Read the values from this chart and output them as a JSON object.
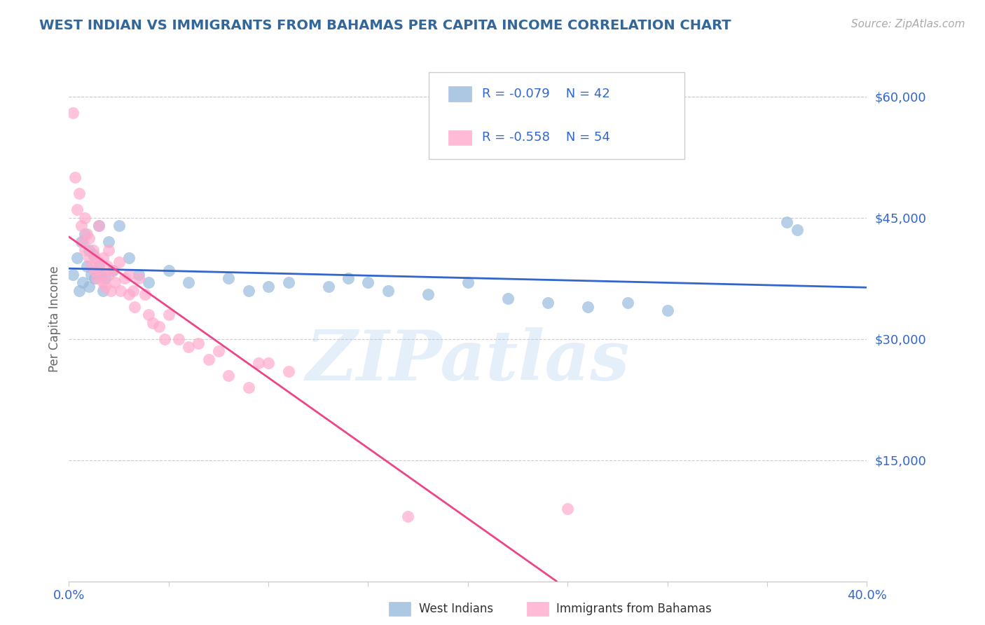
{
  "title": "WEST INDIAN VS IMMIGRANTS FROM BAHAMAS PER CAPITA INCOME CORRELATION CHART",
  "source": "Source: ZipAtlas.com",
  "ylabel": "Per Capita Income",
  "yticks": [
    0,
    15000,
    30000,
    45000,
    60000
  ],
  "ytick_labels": [
    "",
    "$15,000",
    "$30,000",
    "$45,000",
    "$60,000"
  ],
  "xlim": [
    0.0,
    0.4
  ],
  "ylim": [
    0,
    65000
  ],
  "legend_r1": "R = -0.079",
  "legend_n1": "N = 42",
  "legend_r2": "R = -0.558",
  "legend_n2": "N = 54",
  "blue_color": "#99bbdd",
  "pink_color": "#ffaacc",
  "blue_line_color": "#3366cc",
  "pink_line_color": "#ee4488",
  "title_color": "#336699",
  "source_color": "#aaaaaa",
  "grid_color": "#cccccc",
  "watermark": "ZIPatlas",
  "blue_scatter_x": [
    0.002,
    0.004,
    0.005,
    0.006,
    0.007,
    0.008,
    0.009,
    0.01,
    0.01,
    0.011,
    0.012,
    0.013,
    0.015,
    0.015,
    0.016,
    0.017,
    0.018,
    0.02,
    0.022,
    0.025,
    0.03,
    0.035,
    0.04,
    0.05,
    0.06,
    0.08,
    0.09,
    0.1,
    0.11,
    0.13,
    0.14,
    0.15,
    0.16,
    0.18,
    0.2,
    0.22,
    0.24,
    0.26,
    0.28,
    0.3,
    0.36,
    0.365
  ],
  "blue_scatter_y": [
    38000,
    40000,
    36000,
    42000,
    37000,
    43000,
    39000,
    41000,
    36500,
    38000,
    40500,
    37500,
    44000,
    39000,
    38000,
    36000,
    37500,
    42000,
    38500,
    44000,
    40000,
    38000,
    37000,
    38500,
    37000,
    37500,
    36000,
    36500,
    37000,
    36500,
    37500,
    37000,
    36000,
    35500,
    37000,
    35000,
    34500,
    34000,
    34500,
    33500,
    44500,
    43500
  ],
  "pink_scatter_x": [
    0.002,
    0.003,
    0.004,
    0.005,
    0.006,
    0.007,
    0.008,
    0.008,
    0.009,
    0.01,
    0.01,
    0.011,
    0.012,
    0.013,
    0.013,
    0.014,
    0.015,
    0.015,
    0.016,
    0.017,
    0.017,
    0.018,
    0.019,
    0.02,
    0.02,
    0.021,
    0.022,
    0.023,
    0.025,
    0.026,
    0.028,
    0.03,
    0.03,
    0.032,
    0.033,
    0.035,
    0.038,
    0.04,
    0.042,
    0.045,
    0.048,
    0.05,
    0.055,
    0.06,
    0.065,
    0.07,
    0.075,
    0.08,
    0.09,
    0.095,
    0.1,
    0.11,
    0.17,
    0.25
  ],
  "pink_scatter_y": [
    58000,
    50000,
    46000,
    48000,
    44000,
    42000,
    45000,
    41000,
    43000,
    40000,
    42500,
    39000,
    41000,
    38500,
    40000,
    37500,
    44000,
    39500,
    38000,
    37000,
    40000,
    36500,
    39000,
    38000,
    41000,
    36000,
    38500,
    37000,
    39500,
    36000,
    37500,
    38000,
    35500,
    36000,
    34000,
    37500,
    35500,
    33000,
    32000,
    31500,
    30000,
    33000,
    30000,
    29000,
    29500,
    27500,
    28500,
    25500,
    24000,
    27000,
    27000,
    26000,
    8000,
    9000
  ]
}
